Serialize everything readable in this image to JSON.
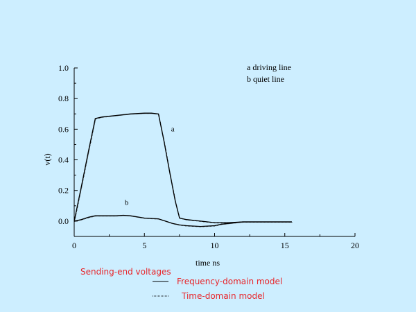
{
  "chart_data": {
    "type": "line",
    "title": "",
    "xlabel": "time  ns",
    "ylabel": "v(t)",
    "xlim": [
      0,
      20
    ],
    "ylim": [
      -0.1,
      1.0
    ],
    "xticks": [
      0,
      5,
      10,
      15,
      20
    ],
    "xtick_labels": [
      "0",
      "5",
      "10",
      "15",
      "20"
    ],
    "yticks": [
      0.0,
      0.2,
      0.4,
      0.6,
      0.8,
      1.0
    ],
    "ytick_labels": [
      "0.0",
      "0.2",
      "0.4",
      "0.6",
      "0.8",
      "1.0"
    ],
    "grid": false,
    "curve_legend": [
      "a  driving line",
      "b  quiet line"
    ],
    "curve_labels": [
      "a",
      "b"
    ],
    "series": [
      {
        "label": "a",
        "x": [
          0,
          0.5,
          1.0,
          1.5,
          2.0,
          3.0,
          4.0,
          5.0,
          5.5,
          6.0,
          6.4,
          6.8,
          7.2,
          7.5,
          8.0,
          9.0,
          10.0,
          11.0,
          12.0,
          13.0,
          14.0,
          15.0,
          15.5
        ],
        "y": [
          0.0,
          0.22,
          0.45,
          0.67,
          0.68,
          0.69,
          0.7,
          0.705,
          0.705,
          0.7,
          0.52,
          0.32,
          0.13,
          0.02,
          0.01,
          0.0,
          -0.01,
          -0.01,
          -0.005,
          -0.005,
          -0.005,
          -0.005,
          -0.005
        ]
      },
      {
        "label": "b",
        "x": [
          0,
          0.5,
          1.0,
          1.5,
          2.0,
          3.0,
          3.5,
          4.0,
          5.0,
          6.0,
          6.5,
          7.0,
          7.5,
          8.0,
          9.0,
          10.0,
          10.5,
          11.0,
          12.0,
          13.0,
          14.0,
          15.0,
          15.5
        ],
        "y": [
          0.0,
          0.01,
          0.025,
          0.035,
          0.035,
          0.035,
          0.038,
          0.035,
          0.02,
          0.015,
          0.0,
          -0.015,
          -0.025,
          -0.03,
          -0.035,
          -0.03,
          -0.02,
          -0.015,
          -0.005,
          -0.005,
          -0.005,
          -0.005,
          -0.005
        ]
      }
    ],
    "legend": {
      "heading": "Sending-end voltages",
      "entries": [
        {
          "name": "Frequency-domain model",
          "style": "solid"
        },
        {
          "name": "Time-domain model",
          "style": "dotted"
        }
      ]
    },
    "colors": {
      "background": "#cdeeff",
      "line": "#000000",
      "legend_text": "#e8252a"
    }
  }
}
